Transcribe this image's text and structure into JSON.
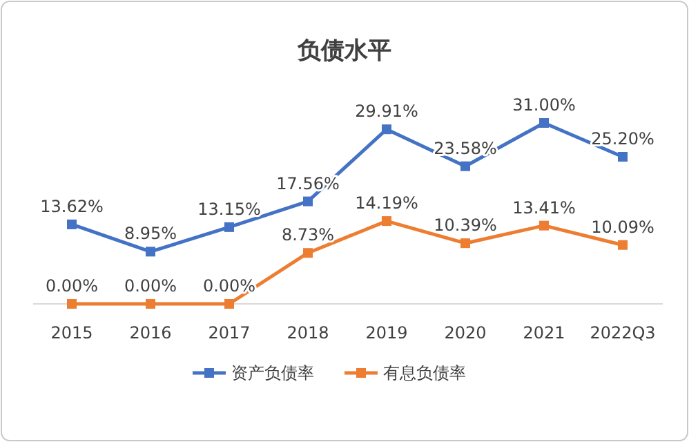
{
  "chart_data": {
    "type": "line",
    "title": "负债水平",
    "categories": [
      "2015",
      "2016",
      "2017",
      "2018",
      "2019",
      "2020",
      "2021",
      "2022Q3"
    ],
    "tick_labels": "x",
    "grid": false,
    "legend": "bottom",
    "marker": "square",
    "line_style": "solid",
    "series": [
      {
        "name": "资产负债率",
        "color": "#4472c4",
        "values": [
          13.62,
          8.95,
          13.15,
          17.56,
          29.91,
          23.58,
          31.0,
          25.2
        ],
        "value_labels": [
          "13.62%",
          "8.95%",
          "13.15%",
          "17.56%",
          "29.91%",
          "23.58%",
          "31.00%",
          "25.20%"
        ]
      },
      {
        "name": "有息负债率",
        "color": "#ed7d31",
        "values": [
          0.0,
          0.0,
          0.0,
          8.73,
          14.19,
          10.39,
          13.41,
          10.09
        ],
        "value_labels": [
          "0.00%",
          "0.00%",
          "0.00%",
          "8.73%",
          "14.19%",
          "10.39%",
          "13.41%",
          "10.09%"
        ]
      }
    ]
  }
}
